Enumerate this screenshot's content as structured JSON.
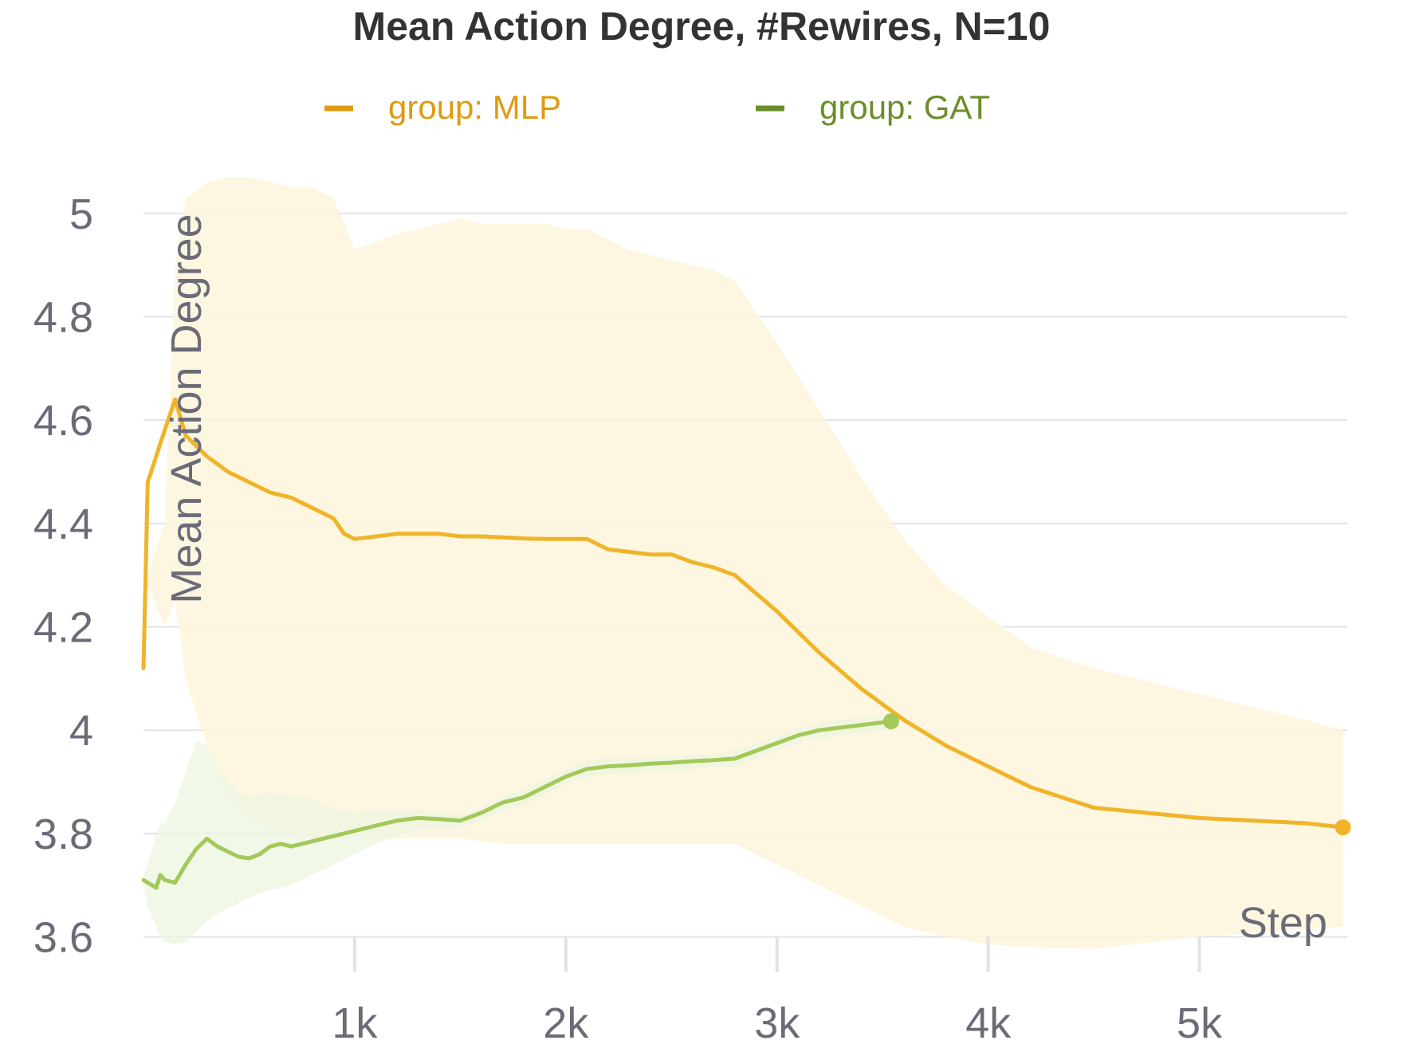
{
  "chart_data": {
    "type": "line",
    "title": "Mean Action Degree, #Rewires, N=10",
    "xlabel": "Step",
    "ylabel": "Mean Action Degree",
    "xlim": [
      0,
      5700
    ],
    "ylim": [
      3.57,
      5.12
    ],
    "grid": true,
    "legend_position": "top",
    "x_ticks": [
      {
        "value": 1000,
        "label": "1k"
      },
      {
        "value": 2000,
        "label": "2k"
      },
      {
        "value": 3000,
        "label": "3k"
      },
      {
        "value": 4000,
        "label": "4k"
      },
      {
        "value": 5000,
        "label": "5k"
      }
    ],
    "y_ticks": [
      {
        "value": 3.6,
        "label": "3.6"
      },
      {
        "value": 3.8,
        "label": "3.8"
      },
      {
        "value": 4.0,
        "label": "4"
      },
      {
        "value": 4.2,
        "label": "4.2"
      },
      {
        "value": 4.4,
        "label": "4.4"
      },
      {
        "value": 4.6,
        "label": "4.6"
      },
      {
        "value": 4.8,
        "label": "4.8"
      },
      {
        "value": 5.0,
        "label": "5"
      }
    ],
    "series": [
      {
        "name": "group: MLP",
        "legend_color": "#e09a10",
        "line_color": "#f0b429",
        "band_color": "#fdf4dc",
        "x": [
          0,
          20,
          100,
          150,
          200,
          300,
          400,
          500,
          600,
          700,
          800,
          900,
          950,
          1000,
          1200,
          1400,
          1500,
          1600,
          1700,
          1800,
          1900,
          2000,
          2100,
          2200,
          2300,
          2400,
          2500,
          2600,
          2700,
          2800,
          3000,
          3200,
          3400,
          3600,
          3800,
          4000,
          4200,
          4500,
          5000,
          5500,
          5680
        ],
        "values": [
          4.12,
          4.48,
          4.58,
          4.64,
          4.57,
          4.53,
          4.5,
          4.48,
          4.46,
          4.45,
          4.43,
          4.41,
          4.38,
          4.37,
          4.38,
          4.38,
          4.375,
          4.375,
          4.373,
          4.371,
          4.37,
          4.37,
          4.37,
          4.35,
          4.345,
          4.34,
          4.34,
          4.325,
          4.315,
          4.3,
          4.23,
          4.15,
          4.08,
          4.02,
          3.97,
          3.93,
          3.89,
          3.85,
          3.83,
          3.82,
          3.812
        ],
        "upper": [
          4.12,
          4.3,
          4.4,
          4.9,
          5.03,
          5.06,
          5.07,
          5.07,
          5.06,
          5.05,
          5.05,
          5.03,
          4.98,
          4.93,
          4.96,
          4.98,
          4.99,
          4.98,
          4.98,
          4.98,
          4.98,
          4.97,
          4.97,
          4.95,
          4.93,
          4.92,
          4.91,
          4.9,
          4.89,
          4.87,
          4.75,
          4.62,
          4.49,
          4.37,
          4.28,
          4.22,
          4.16,
          4.12,
          4.07,
          4.02,
          4.0
        ],
        "lower": [
          4.12,
          4.28,
          4.2,
          4.25,
          4.1,
          3.97,
          3.88,
          3.83,
          3.81,
          3.8,
          3.79,
          3.79,
          3.79,
          3.79,
          3.79,
          3.79,
          3.79,
          3.785,
          3.78,
          3.78,
          3.78,
          3.78,
          3.78,
          3.78,
          3.78,
          3.78,
          3.78,
          3.78,
          3.78,
          3.78,
          3.74,
          3.7,
          3.66,
          3.62,
          3.6,
          3.585,
          3.58,
          3.577,
          3.6,
          3.615,
          3.62
        ],
        "end_marker": true
      },
      {
        "name": "group: GAT",
        "legend_color": "#6b8e2a",
        "line_color": "#a3c95b",
        "band_color": "#eef5e0",
        "x": [
          0,
          20,
          60,
          80,
          100,
          150,
          200,
          250,
          300,
          350,
          400,
          450,
          500,
          550,
          600,
          650,
          700,
          750,
          800,
          900,
          1000,
          1100,
          1200,
          1300,
          1400,
          1500,
          1600,
          1700,
          1800,
          1900,
          2000,
          2100,
          2200,
          2300,
          2400,
          2500,
          2600,
          2700,
          2800,
          2900,
          3000,
          3100,
          3200,
          3300,
          3400,
          3500,
          3540
        ],
        "values": [
          3.71,
          3.705,
          3.695,
          3.72,
          3.71,
          3.705,
          3.74,
          3.77,
          3.79,
          3.775,
          3.765,
          3.755,
          3.752,
          3.76,
          3.775,
          3.78,
          3.775,
          3.78,
          3.785,
          3.795,
          3.805,
          3.815,
          3.825,
          3.83,
          3.828,
          3.825,
          3.84,
          3.86,
          3.87,
          3.89,
          3.91,
          3.925,
          3.93,
          3.932,
          3.935,
          3.937,
          3.94,
          3.942,
          3.945,
          3.96,
          3.975,
          3.99,
          4.0,
          4.005,
          4.01,
          4.015,
          4.017
        ],
        "upper": [
          3.72,
          3.74,
          3.8,
          3.82,
          3.82,
          3.86,
          3.92,
          3.98,
          3.97,
          3.93,
          3.9,
          3.88,
          3.87,
          3.875,
          3.88,
          3.875,
          3.87,
          3.87,
          3.865,
          3.85,
          3.84,
          3.845,
          3.845,
          3.845,
          3.84,
          3.835,
          3.85,
          3.87,
          3.885,
          3.905,
          3.925,
          3.94,
          3.945,
          3.945,
          3.947,
          3.95,
          3.952,
          3.955,
          3.96,
          3.975,
          3.99,
          4.005,
          4.015,
          4.02,
          4.025,
          4.028,
          4.03
        ],
        "lower": [
          3.7,
          3.66,
          3.62,
          3.6,
          3.59,
          3.585,
          3.59,
          3.61,
          3.63,
          3.645,
          3.655,
          3.665,
          3.675,
          3.685,
          3.69,
          3.695,
          3.7,
          3.71,
          3.72,
          3.74,
          3.76,
          3.78,
          3.795,
          3.805,
          3.81,
          3.81,
          3.825,
          3.845,
          3.855,
          3.875,
          3.895,
          3.91,
          3.915,
          3.918,
          3.92,
          3.922,
          3.925,
          3.928,
          3.93,
          3.945,
          3.96,
          3.975,
          3.985,
          3.99,
          3.995,
          4.002,
          4.005
        ],
        "end_marker": true
      }
    ]
  }
}
